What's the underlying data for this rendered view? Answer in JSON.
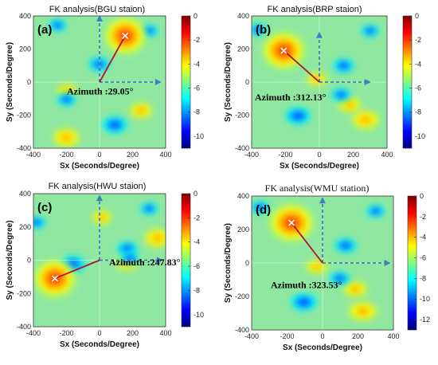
{
  "chart_data": [
    {
      "type": "heatmap",
      "title": "FK analysis(BGU staion)",
      "panel_label": "(a)",
      "azimuth_label": "Azimuth :29.05°",
      "xlabel": "Sx (Seconds/Degree)",
      "ylabel": "Sy (Seconds/Degree)",
      "xlim": [
        -400,
        400
      ],
      "ylim": [
        -400,
        400
      ],
      "xticks": [
        "-400",
        "-200",
        "0",
        "200",
        "400"
      ],
      "yticks": [
        "-400",
        "-200",
        "0",
        "200",
        "400"
      ],
      "colorbar": {
        "range": [
          -11,
          0
        ],
        "ticks": [
          "0",
          "-2",
          "-4",
          "-6",
          "-8",
          "-10"
        ]
      },
      "peak": {
        "sx": 155,
        "sy": 280
      },
      "azimuth_deg": 29.05,
      "arrow_extent": {
        "x": 370,
        "y": 400
      }
    },
    {
      "type": "heatmap",
      "title": "FK analysis(BRP staion)",
      "panel_label": "(b)",
      "azimuth_label": "Azimuth :312.13°",
      "xlabel": "Sx (Seconds/Degree)",
      "ylabel": "Sy (Seconds/Degree)",
      "xlim": [
        -400,
        400
      ],
      "ylim": [
        -400,
        400
      ],
      "xticks": [
        "-400",
        "-200",
        "0",
        "200",
        "400"
      ],
      "yticks": [
        "-400",
        "-200",
        "0",
        "200",
        "400"
      ],
      "colorbar": {
        "range": [
          -11,
          0
        ],
        "ticks": [
          "0",
          "-2",
          "-4",
          "-6",
          "-8",
          "-10"
        ]
      },
      "peak": {
        "sx": -210,
        "sy": 190
      },
      "azimuth_deg": 312.13,
      "arrow_extent": {
        "x": 300,
        "y": 300
      }
    },
    {
      "type": "heatmap",
      "title": "FK analysis(HWU staion)",
      "panel_label": "(c)",
      "azimuth_label": "Azimuth :247.83°",
      "xlabel": "Sx (Seconds/Degree)",
      "ylabel": "Sy (Seconds/Degree)",
      "xlim": [
        -400,
        400
      ],
      "ylim": [
        -400,
        400
      ],
      "xticks": [
        "-400",
        "-200",
        "0",
        "200",
        "400"
      ],
      "yticks": [
        "-400",
        "-200",
        "0",
        "200",
        "400"
      ],
      "colorbar": {
        "range": [
          -11,
          0
        ],
        "ticks": [
          "0",
          "-2",
          "-4",
          "-6",
          "-8",
          "-10"
        ]
      },
      "peak": {
        "sx": -270,
        "sy": -110
      },
      "azimuth_deg": 247.83,
      "arrow_extent": {
        "x": 380,
        "y": 390
      }
    },
    {
      "type": "heatmap",
      "title": "FK analysis(WMU station)",
      "panel_label": "(d)",
      "azimuth_label": "Azimuth :323.53°",
      "xlabel": "Sx (Seconds/Degree)",
      "ylabel": "Sy (Seconds/Degree)",
      "xlim": [
        -400,
        400
      ],
      "ylim": [
        -400,
        400
      ],
      "xticks": [
        "-400",
        "-200",
        "0",
        "200",
        "400"
      ],
      "yticks": [
        "-400",
        "-200",
        "0",
        "200",
        "400"
      ],
      "colorbar": {
        "range": [
          -13,
          0
        ],
        "ticks": [
          "0",
          "-2",
          "-4",
          "-6",
          "-8",
          "-10",
          "-12"
        ]
      },
      "peak": {
        "sx": -175,
        "sy": 240
      },
      "azimuth_deg": 323.53,
      "arrow_extent": {
        "x": 380,
        "y": 390
      }
    }
  ],
  "colors": {
    "colormap": [
      "#00007f",
      "#0000ff",
      "#007fff",
      "#00ffff",
      "#7fff7f",
      "#ffff00",
      "#ff7f00",
      "#ff0000",
      "#7f0000"
    ],
    "azimuth_line": "#b0122b",
    "arrows": "#3f7fbf",
    "peak_marker": "#ffffff"
  }
}
